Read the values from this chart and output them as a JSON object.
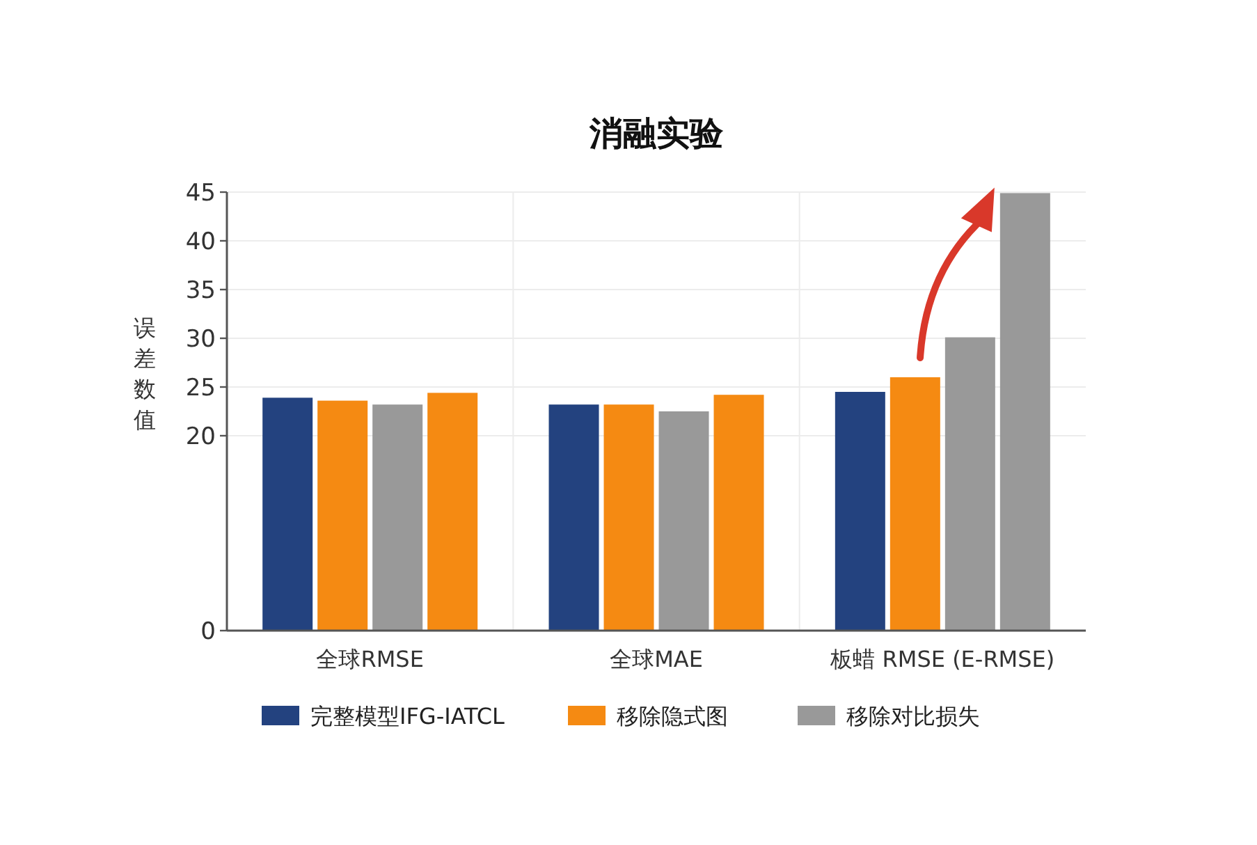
{
  "chart_data": {
    "type": "bar",
    "title": "消融实验",
    "ylabel": "误差数值",
    "categories": [
      "全球RMSE",
      "全球MAE",
      "板蜡 RMSE (E-RMSE)"
    ],
    "series": [
      {
        "name": "完整模型IFG-IATCL",
        "color": "#23427f",
        "values": [
          23.9,
          23.2,
          24.5
        ]
      },
      {
        "name": "移除隐式图",
        "color": "#f58a12",
        "values": [
          23.6,
          23.2,
          26.0
        ]
      },
      {
        "name": "移除对比损失",
        "color": "#999999",
        "values": [
          23.2,
          22.5,
          30.1
        ]
      },
      {
        "colors": [
          "#f58a12",
          "#f58a12",
          "#999999"
        ],
        "values": [
          24.4,
          24.2,
          44.9
        ]
      }
    ],
    "ylim": [
      0,
      45
    ],
    "yticks": [
      0,
      20,
      25,
      30,
      35,
      40,
      45
    ],
    "grid": true,
    "legend": "bottom"
  }
}
